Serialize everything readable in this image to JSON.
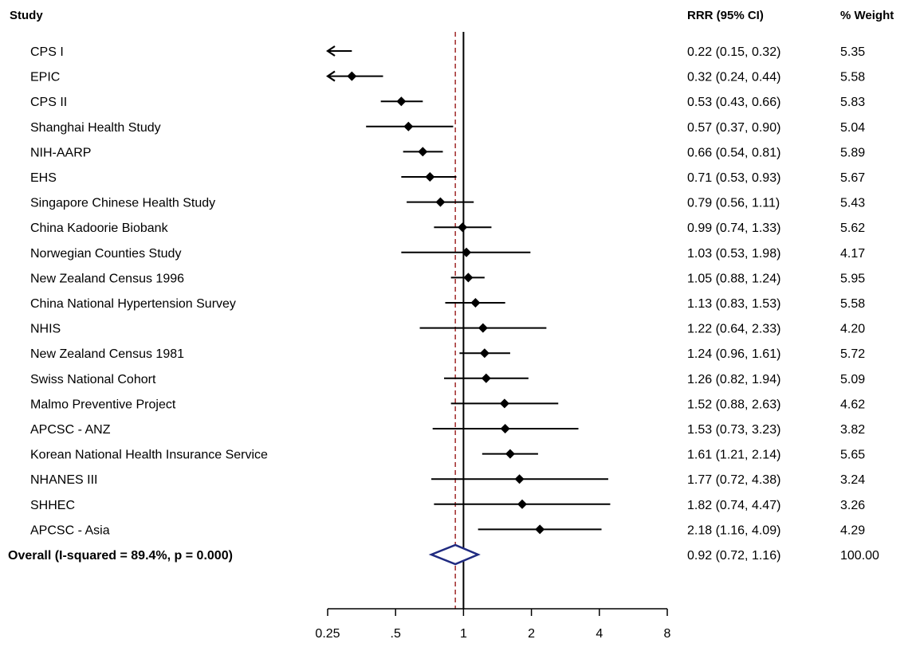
{
  "chart_data": {
    "type": "forest",
    "headers": {
      "study": "Study",
      "estimate": "RRR (95% CI)",
      "weight": "% Weight"
    },
    "x_scale": "log",
    "xlim": [
      0.25,
      8
    ],
    "x_ticks": [
      {
        "value": 0.25,
        "label": "0.25"
      },
      {
        "value": 0.5,
        "label": ".5"
      },
      {
        "value": 1,
        "label": "1"
      },
      {
        "value": 2,
        "label": "2"
      },
      {
        "value": 4,
        "label": "4"
      },
      {
        "value": 8,
        "label": "8"
      }
    ],
    "null_line": 1,
    "studies": [
      {
        "name": "CPS I",
        "rrr": 0.22,
        "lo": 0.15,
        "hi": 0.32,
        "ci_text": "0.22 (0.15, 0.32)",
        "weight": "5.35"
      },
      {
        "name": "EPIC",
        "rrr": 0.32,
        "lo": 0.24,
        "hi": 0.44,
        "ci_text": "0.32 (0.24, 0.44)",
        "weight": "5.58"
      },
      {
        "name": "CPS II",
        "rrr": 0.53,
        "lo": 0.43,
        "hi": 0.66,
        "ci_text": "0.53 (0.43, 0.66)",
        "weight": "5.83"
      },
      {
        "name": "Shanghai Health Study",
        "rrr": 0.57,
        "lo": 0.37,
        "hi": 0.9,
        "ci_text": "0.57 (0.37, 0.90)",
        "weight": "5.04"
      },
      {
        "name": "NIH-AARP",
        "rrr": 0.66,
        "lo": 0.54,
        "hi": 0.81,
        "ci_text": "0.66 (0.54, 0.81)",
        "weight": "5.89"
      },
      {
        "name": "EHS",
        "rrr": 0.71,
        "lo": 0.53,
        "hi": 0.93,
        "ci_text": "0.71 (0.53, 0.93)",
        "weight": "5.67"
      },
      {
        "name": "Singapore Chinese Health Study",
        "rrr": 0.79,
        "lo": 0.56,
        "hi": 1.11,
        "ci_text": "0.79 (0.56, 1.11)",
        "weight": "5.43"
      },
      {
        "name": "China Kadoorie Biobank",
        "rrr": 0.99,
        "lo": 0.74,
        "hi": 1.33,
        "ci_text": "0.99 (0.74, 1.33)",
        "weight": "5.62"
      },
      {
        "name": "Norwegian Counties Study",
        "rrr": 1.03,
        "lo": 0.53,
        "hi": 1.98,
        "ci_text": "1.03 (0.53, 1.98)",
        "weight": "4.17"
      },
      {
        "name": "New Zealand Census 1996",
        "rrr": 1.05,
        "lo": 0.88,
        "hi": 1.24,
        "ci_text": "1.05 (0.88, 1.24)",
        "weight": "5.95"
      },
      {
        "name": "China National Hypertension Survey",
        "rrr": 1.13,
        "lo": 0.83,
        "hi": 1.53,
        "ci_text": "1.13 (0.83, 1.53)",
        "weight": "5.58"
      },
      {
        "name": "NHIS",
        "rrr": 1.22,
        "lo": 0.64,
        "hi": 2.33,
        "ci_text": "1.22 (0.64, 2.33)",
        "weight": "4.20"
      },
      {
        "name": "New Zealand Census 1981",
        "rrr": 1.24,
        "lo": 0.96,
        "hi": 1.61,
        "ci_text": "1.24 (0.96, 1.61)",
        "weight": "5.72"
      },
      {
        "name": "Swiss National Cohort",
        "rrr": 1.26,
        "lo": 0.82,
        "hi": 1.94,
        "ci_text": "1.26 (0.82, 1.94)",
        "weight": "5.09"
      },
      {
        "name": "Malmo Preventive Project",
        "rrr": 1.52,
        "lo": 0.88,
        "hi": 2.63,
        "ci_text": "1.52 (0.88, 2.63)",
        "weight": "4.62"
      },
      {
        "name": "APCSC - ANZ",
        "rrr": 1.53,
        "lo": 0.73,
        "hi": 3.23,
        "ci_text": "1.53 (0.73, 3.23)",
        "weight": "3.82"
      },
      {
        "name": "Korean National Health Insurance Service",
        "rrr": 1.61,
        "lo": 1.21,
        "hi": 2.14,
        "ci_text": "1.61 (1.21, 2.14)",
        "weight": "5.65"
      },
      {
        "name": "NHANES III",
        "rrr": 1.77,
        "lo": 0.72,
        "hi": 4.38,
        "ci_text": "1.77 (0.72, 4.38)",
        "weight": "3.24"
      },
      {
        "name": "SHHEC",
        "rrr": 1.82,
        "lo": 0.74,
        "hi": 4.47,
        "ci_text": "1.82 (0.74, 4.47)",
        "weight": "3.26"
      },
      {
        "name": "APCSC - Asia",
        "rrr": 2.18,
        "lo": 1.16,
        "hi": 4.09,
        "ci_text": "2.18 (1.16, 4.09)",
        "weight": "4.29"
      }
    ],
    "overall": {
      "label": "Overall  (I-squared = 89.4%, p = 0.000)",
      "rrr": 0.92,
      "lo": 0.72,
      "hi": 1.16,
      "ci_text": "0.92 (0.72, 1.16)",
      "weight": "100.00"
    },
    "colors": {
      "marker": "#000000",
      "overall_diamond": "#1f2a80",
      "pooled_line": "#a02828"
    }
  }
}
